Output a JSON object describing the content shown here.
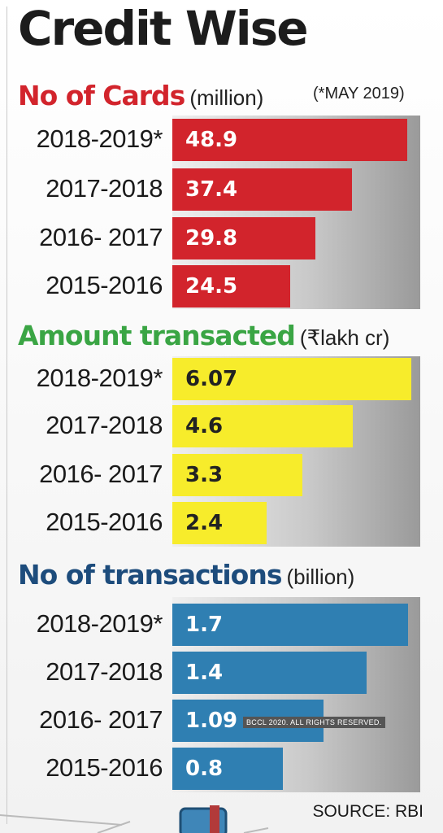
{
  "title": "Credit Wise",
  "note": "(*MAY 2019)",
  "source": "SOURCE: RBI",
  "copyright": "BCCL 2020. ALL RIGHTS RESERVED.",
  "colors": {
    "red": "#d2242c",
    "green": "#3aa544",
    "yellow": "#f7ec2b",
    "blue": "#2f7fb2"
  },
  "chart_data": [
    {
      "type": "bar",
      "orientation": "horizontal",
      "title": "No of Cards",
      "unit": "(million)",
      "categories": [
        "2018-2019*",
        "2017-2018",
        "2016- 2017",
        "2015-2016"
      ],
      "values": [
        48.9,
        37.4,
        29.8,
        24.5
      ],
      "value_labels": [
        "48.9",
        "37.4",
        "29.8",
        "24.5"
      ],
      "xlim": [
        0,
        50
      ]
    },
    {
      "type": "bar",
      "orientation": "horizontal",
      "title": "Amount transacted",
      "unit": "(₹lakh cr)",
      "categories": [
        "2018-2019*",
        "2017-2018",
        "2016- 2017",
        "2015-2016"
      ],
      "values": [
        6.07,
        4.6,
        3.3,
        2.4
      ],
      "value_labels": [
        "6.07",
        "4.6",
        "3.3",
        "2.4"
      ],
      "xlim": [
        0,
        6.1
      ]
    },
    {
      "type": "bar",
      "orientation": "horizontal",
      "title": "No of transactions",
      "unit": "(billion)",
      "categories": [
        "2018-2019*",
        "2017-2018",
        "2016- 2017",
        "2015-2016"
      ],
      "values": [
        1.7,
        1.4,
        1.09,
        0.8
      ],
      "value_labels": [
        "1.7",
        "1.4",
        "1.09",
        "0.8"
      ],
      "xlim": [
        0,
        1.73
      ]
    }
  ]
}
